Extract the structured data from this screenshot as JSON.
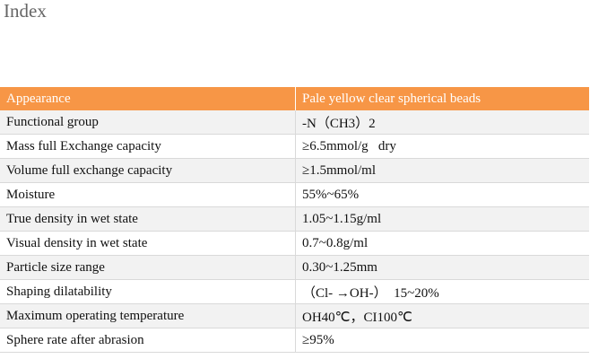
{
  "header": {
    "title": "Index"
  },
  "table": {
    "header": [
      "Appearance",
      "Pale yellow clear spherical beads"
    ],
    "rows": [
      [
        "Functional group",
        "-N（CH3）2"
      ],
      [
        "Mass full Exchange capacity",
        "≥6.5mmol/g   dry"
      ],
      [
        "Volume full exchange capacity",
        "≥1.5mmol/ml"
      ],
      [
        "Moisture",
        "55%~65%"
      ],
      [
        "True density in wet state",
        "1.05~1.15g/ml"
      ],
      [
        "Visual density in wet state",
        "0.7~0.8g/ml"
      ],
      [
        "Particle size range",
        "0.30~1.25mm"
      ],
      [
        "Shaping dilatability",
        "（Cl- →OH-）  15~20%"
      ],
      [
        "Maximum operating temperature",
        "OH40℃，CI100℃"
      ],
      [
        "Sphere rate after abrasion",
        "≥95%"
      ]
    ]
  }
}
